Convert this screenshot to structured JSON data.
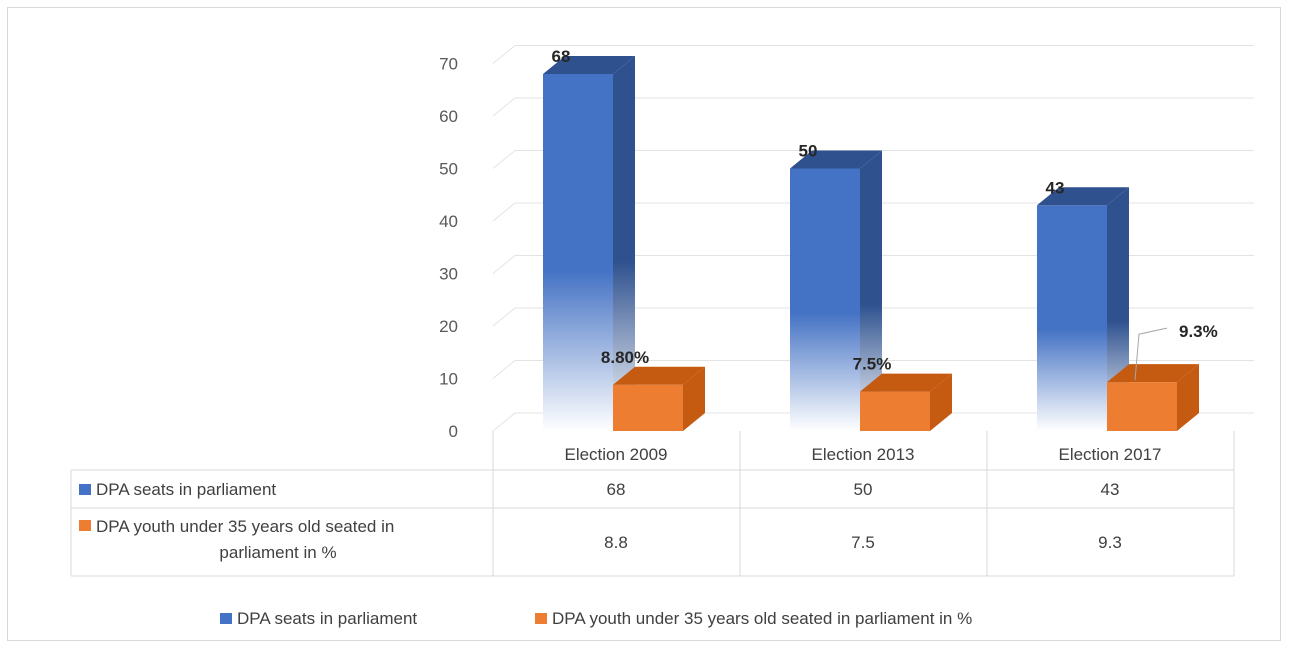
{
  "chart_data": {
    "type": "bar",
    "style": "3d-clustered-column",
    "categories": [
      "Election 2009",
      "Election 2013",
      "Election 2017"
    ],
    "series": [
      {
        "name": "DPA seats in parliament",
        "values": [
          68,
          50,
          43
        ],
        "data_labels": [
          "68",
          "50",
          "43"
        ],
        "table_values": [
          "68",
          "50",
          "43"
        ],
        "color": "#4472C4"
      },
      {
        "name": "DPA youth under 35 years old seated in parliament in %",
        "table_lines": [
          "DPA youth under 35 years old seated in",
          "parliament in %"
        ],
        "values": [
          8.8,
          7.5,
          9.3
        ],
        "data_labels": [
          "8.80%",
          "7.5%",
          "9.3%"
        ],
        "table_values": [
          "8.8",
          "7.5",
          "9.3"
        ],
        "color": "#ED7D31"
      }
    ],
    "y_ticks": [
      "0",
      "10",
      "20",
      "30",
      "40",
      "50",
      "60",
      "70"
    ],
    "ylim": [
      0,
      70
    ],
    "grid": true,
    "legend_position": "bottom",
    "data_table": true
  }
}
